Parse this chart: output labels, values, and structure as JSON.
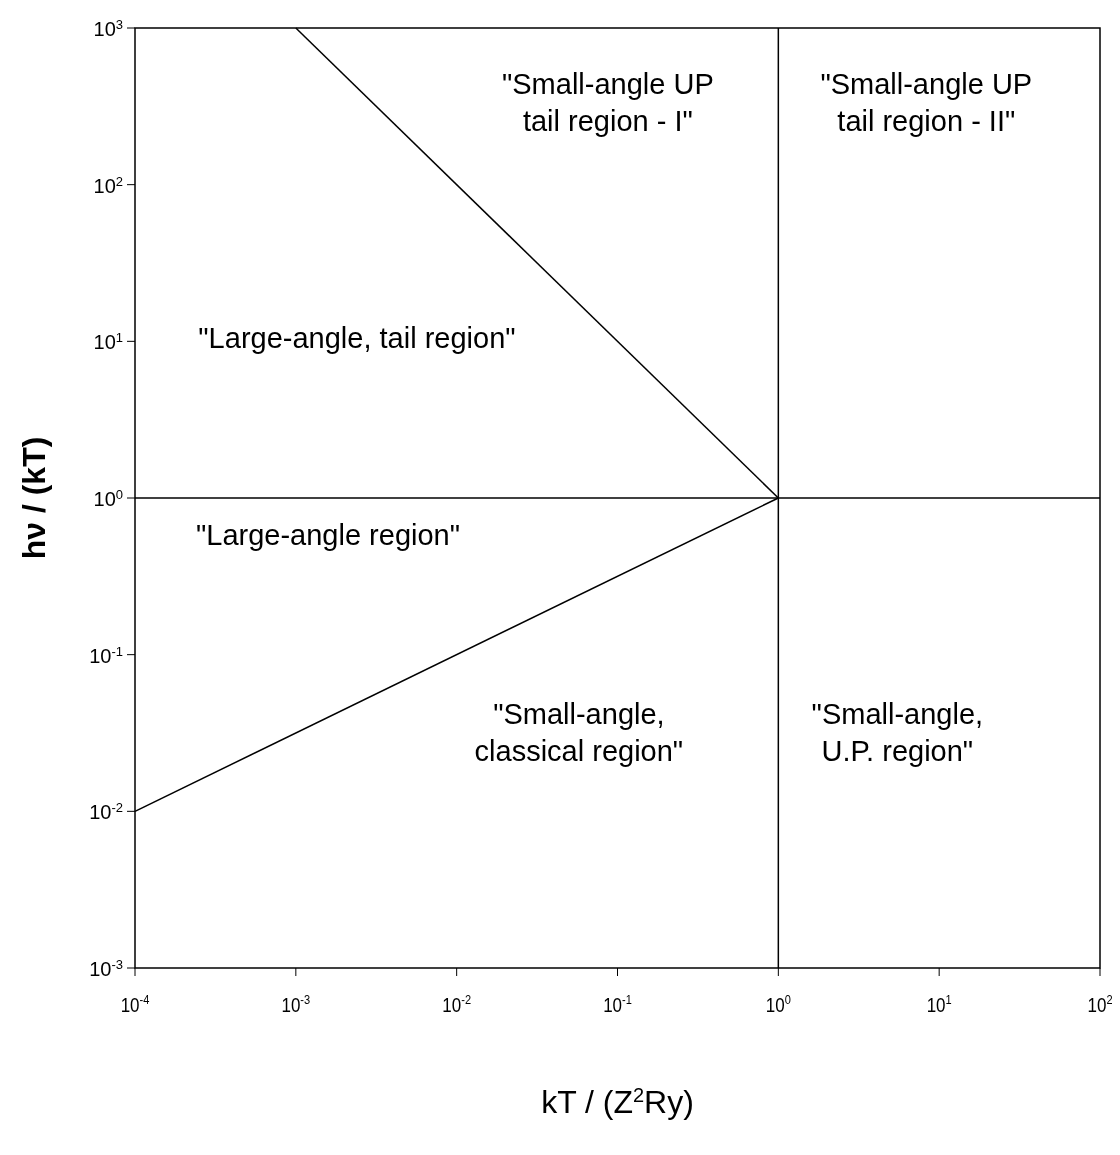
{
  "chart_data": {
    "type": "line",
    "xlabel": "kT / (Z$^{2}$Ry)",
    "ylabel": "hν / (kT)",
    "log": "xy",
    "grid": false,
    "line_style": "solid",
    "xlim": [
      0.0001,
      100
    ],
    "ylim": [
      0.001,
      1000
    ],
    "xticks": [
      {
        "value": 0.0001,
        "label": "10$^{-4}$"
      },
      {
        "value": 0.001,
        "label": "10$^{-3}$"
      },
      {
        "value": 0.01,
        "label": "10$^{-2}$"
      },
      {
        "value": 0.1,
        "label": "10$^{-1}$"
      },
      {
        "value": 1,
        "label": "10$^{0}$"
      },
      {
        "value": 10,
        "label": "10$^{1}$"
      },
      {
        "value": 100,
        "label": "10$^{2}$"
      }
    ],
    "yticks": [
      {
        "value": 0.001,
        "label": "10$^{-3}$"
      },
      {
        "value": 0.01,
        "label": "10$^{-2}$"
      },
      {
        "value": 0.1,
        "label": "10$^{-1}$"
      },
      {
        "value": 1,
        "label": "10$^{0}$"
      },
      {
        "value": 10,
        "label": "10$^{1}$"
      },
      {
        "value": 100,
        "label": "10$^{2}$"
      },
      {
        "value": 1000,
        "label": "10$^{3}$"
      }
    ],
    "series": [
      {
        "color": "#000000",
        "x": [
          0.001,
          1
        ],
        "values": [
          1000,
          1
        ]
      },
      {
        "color": "#000000",
        "x": [
          0.0001,
          1
        ],
        "values": [
          0.01,
          1
        ]
      },
      {
        "color": "#000000",
        "x": [
          1,
          1
        ],
        "values": [
          0.001,
          1000
        ]
      },
      {
        "color": "#000000",
        "x": [
          0.0001,
          100
        ],
        "values": [
          1,
          1
        ]
      }
    ],
    "annotations": [
      "\"Small-angle UP\ntail region - I\"",
      "\"Small-angle UP\ntail region - II\"",
      "\"Large-angle, tail region\"",
      "\"Large-angle region\"",
      "\"Small-angle,\nclassical region\"",
      "\"Small-angle,\nU.P. region\""
    ]
  }
}
